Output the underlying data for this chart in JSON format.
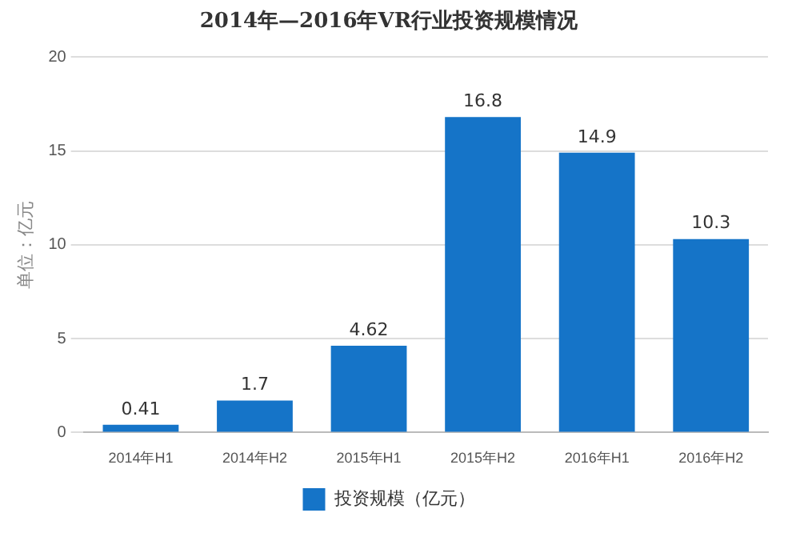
{
  "chart_data": {
    "type": "bar",
    "title": "2014年—2016年VR行业投资规模情况",
    "ylabel": "单位：亿元",
    "categories": [
      "2014年H1",
      "2014年H2",
      "2015年H1",
      "2015年H2",
      "2016年H1",
      "2016年H2"
    ],
    "series": [
      {
        "name": "投资规模（亿元）",
        "color": "#1574c8",
        "values": [
          0.41,
          1.7,
          4.62,
          16.8,
          14.9,
          10.3
        ]
      }
    ],
    "ylim": [
      0,
      20
    ],
    "yticks": [
      0,
      5,
      10,
      15,
      20
    ],
    "grid": "y",
    "legend": "bottom",
    "data_labels": true
  }
}
